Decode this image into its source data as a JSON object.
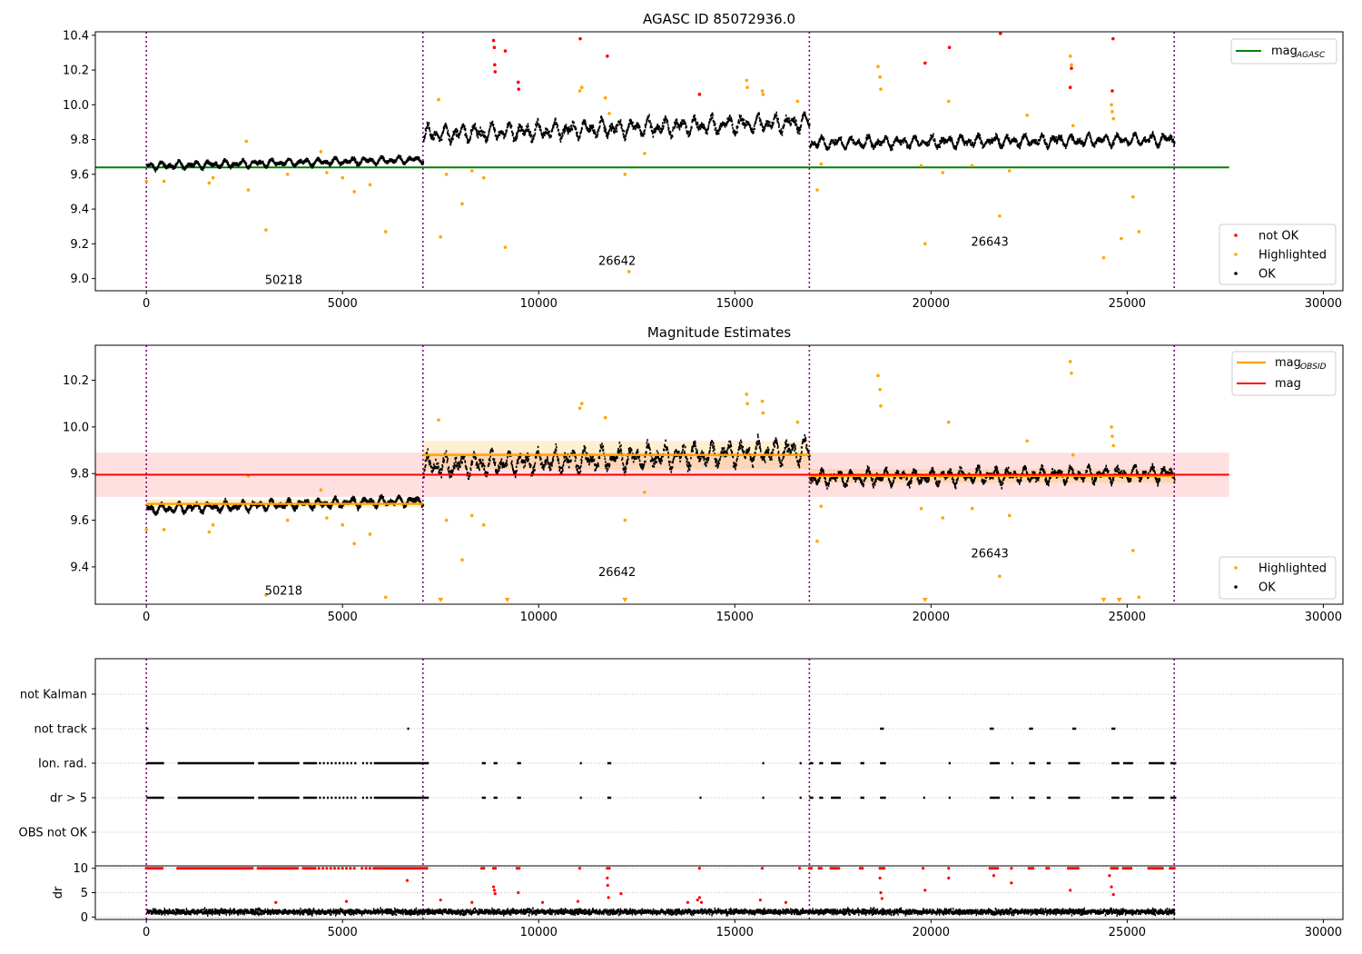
{
  "chart_data": [
    {
      "type": "scatter",
      "title": "AGASC ID 85072936.0",
      "xlim": [
        -1300,
        30500
      ],
      "ylim": [
        8.93,
        10.42
      ],
      "x_ticks": [
        0,
        5000,
        10000,
        15000,
        20000,
        25000,
        30000
      ],
      "y_ticks": [
        9.0,
        9.2,
        9.4,
        9.6,
        9.8,
        10.0,
        10.2,
        10.4
      ],
      "x_tick_labels": [
        "0",
        "5000",
        "10000",
        "15000",
        "20000",
        "25000",
        "30000"
      ],
      "y_tick_labels": [
        "9.0",
        "9.2",
        "9.4",
        "9.6",
        "9.8",
        "10.0",
        "10.2",
        "10.4"
      ],
      "observation_boundaries": [
        0,
        7050,
        16900,
        26200
      ],
      "observation_labels": [
        {
          "text": "50218",
          "x": 3500,
          "y": 8.97
        },
        {
          "text": "26642",
          "x": 12000,
          "y": 9.08
        },
        {
          "text": "26643",
          "x": 21500,
          "y": 9.19
        }
      ],
      "reference_lines": [
        {
          "name": "mag",
          "subscript": "AGASC",
          "value": 9.64,
          "x_range": [
            -1300,
            27600
          ],
          "color": "#008000"
        }
      ],
      "segments": [
        {
          "x0": 0,
          "x1": 7050,
          "mean_start": 9.648,
          "mean_end": 9.685,
          "spread": 0.025
        },
        {
          "x0": 7050,
          "x1": 16900,
          "mean_start": 9.83,
          "mean_end": 9.9,
          "spread": 0.06
        },
        {
          "x0": 16900,
          "x1": 26200,
          "mean_start": 9.78,
          "mean_end": 9.8,
          "spread": 0.04
        }
      ],
      "series": [
        {
          "name": "not OK",
          "color": "#ff0000",
          "x": [
            8850,
            8870,
            8880,
            8890,
            9150,
            9480,
            9490,
            11060,
            11750,
            14100,
            19850,
            20470,
            21770,
            23550,
            23580,
            24620,
            24640
          ],
          "y": [
            10.37,
            10.33,
            10.23,
            10.19,
            10.31,
            10.13,
            10.09,
            10.38,
            10.28,
            10.06,
            10.24,
            10.33,
            10.41,
            10.1,
            10.21,
            10.08,
            10.38
          ]
        },
        {
          "name": "Highlighted",
          "color": "#ffa500",
          "x": [
            0,
            450,
            1600,
            1700,
            2550,
            2600,
            3050,
            3600,
            4450,
            4600,
            5000,
            5300,
            5700,
            6100,
            7450,
            7500,
            7650,
            8050,
            8300,
            8600,
            9150,
            11050,
            11100,
            11700,
            11800,
            12200,
            12300,
            12700,
            15300,
            15320,
            15700,
            15720,
            16600,
            17100,
            17200,
            18650,
            18700,
            18720,
            19750,
            19850,
            20300,
            20450,
            21050,
            21750,
            22000,
            22450,
            23550,
            23580,
            23620,
            24400,
            24600,
            24620,
            24650,
            24850,
            25150,
            25300
          ],
          "y": [
            9.56,
            9.56,
            9.55,
            9.58,
            9.79,
            9.51,
            9.28,
            9.6,
            9.73,
            9.61,
            9.58,
            9.5,
            9.54,
            9.27,
            10.03,
            9.24,
            9.6,
            9.43,
            9.62,
            9.58,
            9.18,
            10.08,
            10.1,
            10.04,
            9.95,
            9.6,
            9.04,
            9.72,
            10.14,
            10.1,
            10.08,
            10.06,
            10.02,
            9.51,
            9.66,
            10.22,
            10.16,
            10.09,
            9.65,
            9.2,
            9.61,
            10.02,
            9.65,
            9.36,
            9.62,
            9.94,
            10.28,
            10.23,
            9.88,
            9.12,
            10.0,
            9.96,
            9.92,
            9.23,
            9.47,
            9.27
          ]
        },
        {
          "name": "OK",
          "color": "#000000",
          "x": [],
          "y": []
        }
      ],
      "legend": [
        {
          "placement": "top-right",
          "entries": [
            "mag AGASC"
          ]
        },
        {
          "placement": "bottom-right",
          "entries": [
            "not OK",
            "Highlighted",
            "OK"
          ]
        }
      ]
    },
    {
      "type": "scatter",
      "title": "Magnitude Estimates",
      "xlim": [
        -1300,
        30500
      ],
      "ylim": [
        9.24,
        10.35
      ],
      "x_ticks": [
        0,
        5000,
        10000,
        15000,
        20000,
        25000,
        30000
      ],
      "y_ticks": [
        9.4,
        9.6,
        9.8,
        10.0,
        10.2
      ],
      "x_tick_labels": [
        "0",
        "5000",
        "10000",
        "15000",
        "20000",
        "25000",
        "30000"
      ],
      "y_tick_labels": [
        "9.4",
        "9.6",
        "9.8",
        "10.0",
        "10.2"
      ],
      "observation_boundaries": [
        0,
        7050,
        16900,
        26200
      ],
      "observation_labels": [
        {
          "text": "50218",
          "x": 3500,
          "y": 9.28
        },
        {
          "text": "26642",
          "x": 12000,
          "y": 9.36
        },
        {
          "text": "26643",
          "x": 21500,
          "y": 9.44
        }
      ],
      "reference_lines": [
        {
          "name": "mag",
          "subscript": "OBSID",
          "color": "#ffa500",
          "steps": [
            {
              "x0": 0,
              "x1": 7050,
              "value": 9.67,
              "band": [
                9.655,
                9.69
              ]
            },
            {
              "x0": 7050,
              "x1": 16900,
              "value": 9.88,
              "band": [
                9.82,
                9.94
              ]
            },
            {
              "x0": 16900,
              "x1": 26200,
              "value": 9.79,
              "band": [
                9.76,
                9.82
              ]
            }
          ]
        },
        {
          "name": "mag",
          "value": 9.795,
          "band": [
            9.7,
            9.89
          ],
          "x_range": [
            -1300,
            27600
          ],
          "color": "#ff0000"
        }
      ],
      "segments": [
        {
          "x0": 0,
          "x1": 7050,
          "mean_start": 9.648,
          "mean_end": 9.685,
          "spread": 0.025
        },
        {
          "x0": 7050,
          "x1": 16900,
          "mean_start": 9.83,
          "mean_end": 9.9,
          "spread": 0.06
        },
        {
          "x0": 16900,
          "x1": 26200,
          "mean_start": 9.78,
          "mean_end": 9.8,
          "spread": 0.04
        }
      ],
      "series": [
        {
          "name": "Highlighted",
          "color": "#ffa500",
          "x": [
            0,
            450,
            1600,
            1700,
            2600,
            3050,
            3600,
            4450,
            4600,
            5000,
            5300,
            5700,
            6100,
            7450,
            7650,
            8050,
            8300,
            8600,
            11050,
            11100,
            11700,
            12200,
            12700,
            15300,
            15320,
            15700,
            15720,
            16600,
            17100,
            17200,
            18650,
            18700,
            18720,
            19750,
            20300,
            20450,
            21050,
            21750,
            22000,
            22450,
            23550,
            23580,
            23620,
            24600,
            24620,
            24650,
            25150,
            25300
          ],
          "y": [
            9.56,
            9.56,
            9.55,
            9.58,
            9.79,
            9.28,
            9.6,
            9.73,
            9.61,
            9.58,
            9.5,
            9.54,
            9.27,
            10.03,
            9.6,
            9.43,
            9.62,
            9.58,
            10.08,
            10.1,
            10.04,
            9.6,
            9.72,
            10.14,
            10.1,
            10.11,
            10.06,
            10.02,
            9.51,
            9.66,
            10.22,
            10.16,
            10.09,
            9.65,
            9.61,
            10.02,
            9.65,
            9.36,
            9.62,
            9.94,
            10.28,
            10.23,
            9.88,
            10.0,
            9.96,
            9.92,
            9.47,
            9.27
          ]
        },
        {
          "name": "OK",
          "color": "#000000",
          "x": [],
          "y": []
        }
      ],
      "offscale_markers": [
        7500,
        9200,
        12200,
        19850,
        24400,
        24800
      ],
      "legend": [
        {
          "placement": "top-right",
          "entries": [
            "mag OBSID",
            "mag"
          ]
        },
        {
          "placement": "bottom-right",
          "entries": [
            "Highlighted",
            "OK"
          ]
        }
      ]
    },
    {
      "type": "scatter",
      "title": "",
      "xlim": [
        -1300,
        30500
      ],
      "categories": [
        "OBS not OK",
        "dr > 5",
        "Ion. rad.",
        "not track",
        "not Kalman"
      ],
      "observation_boundaries": [
        0,
        7050,
        16900,
        26200
      ],
      "flag_points": {
        "not track": [
          0,
          6650,
          18700,
          18750,
          21500,
          21550,
          22500,
          22550,
          23600,
          23650,
          24600,
          24650
        ],
        "Ion. rad.": [
          0,
          50,
          100,
          150,
          200,
          250,
          300,
          350,
          400,
          800,
          850,
          900,
          950,
          1000,
          1050,
          1100,
          1150,
          1200,
          1250,
          1300,
          1350,
          1400,
          1450,
          1500,
          1550,
          1600,
          1650,
          1700,
          1750,
          1800,
          1850,
          1900,
          1950,
          2000,
          2050,
          2100,
          2150,
          2200,
          2250,
          2300,
          2350,
          2400,
          2450,
          2500,
          2550,
          2600,
          2650,
          2700,
          2850,
          2900,
          2950,
          3000,
          3050,
          3100,
          3150,
          3200,
          3250,
          3300,
          3350,
          3400,
          3450,
          3500,
          3550,
          3600,
          3650,
          3700,
          3750,
          3800,
          3850,
          4000,
          4050,
          4100,
          4150,
          4200,
          4250,
          4300,
          4400,
          4500,
          4600,
          4700,
          4800,
          4900,
          5000,
          5100,
          5200,
          5300,
          5500,
          5600,
          5700,
          5800,
          5850,
          5900,
          5950,
          6000,
          6050,
          6100,
          6150,
          6200,
          6250,
          6300,
          6350,
          6400,
          6450,
          6500,
          6550,
          6600,
          6650,
          6700,
          6750,
          6800,
          6850,
          6900,
          6950,
          7000,
          7050,
          7100,
          7150,
          8550,
          8600,
          8850,
          8900,
          9450,
          9500,
          11050,
          11750,
          11800,
          15700,
          16650,
          16900,
          16950,
          17150,
          17200,
          17450,
          17500,
          17550,
          17600,
          17650,
          18200,
          18250,
          18700,
          18750,
          18800,
          20450,
          21500,
          21550,
          21600,
          21650,
          21700,
          22050,
          22500,
          22550,
          22600,
          22950,
          23000,
          23500,
          23550,
          23600,
          23650,
          23700,
          23750,
          24600,
          24650,
          24700,
          24750,
          24900,
          24950,
          25000,
          25050,
          25100,
          25550,
          25600,
          25650,
          25700,
          25750,
          25800,
          25850,
          25900,
          26100,
          26150,
          26200
        ],
        "dr > 5": [
          0,
          50,
          100,
          150,
          200,
          250,
          300,
          350,
          400,
          800,
          850,
          900,
          950,
          1000,
          1050,
          1100,
          1150,
          1200,
          1250,
          1300,
          1350,
          1400,
          1450,
          1500,
          1550,
          1600,
          1650,
          1700,
          1750,
          1800,
          1850,
          1900,
          1950,
          2000,
          2050,
          2100,
          2150,
          2200,
          2250,
          2300,
          2350,
          2400,
          2450,
          2500,
          2550,
          2600,
          2650,
          2700,
          2850,
          2900,
          2950,
          3000,
          3050,
          3100,
          3150,
          3200,
          3250,
          3300,
          3350,
          3400,
          3450,
          3500,
          3550,
          3600,
          3650,
          3700,
          3750,
          3800,
          3850,
          4000,
          4050,
          4100,
          4150,
          4200,
          4250,
          4300,
          4400,
          4500,
          4600,
          4700,
          4800,
          4900,
          5000,
          5100,
          5200,
          5300,
          5500,
          5600,
          5700,
          5800,
          5850,
          5900,
          5950,
          6000,
          6050,
          6100,
          6150,
          6200,
          6250,
          6300,
          6350,
          6400,
          6450,
          6500,
          6550,
          6600,
          6650,
          6700,
          6750,
          6800,
          6850,
          6900,
          6950,
          7000,
          7050,
          7100,
          7150,
          8550,
          8600,
          8850,
          8900,
          9450,
          9500,
          11050,
          11750,
          11800,
          14100,
          15700,
          16650,
          16900,
          16950,
          17150,
          17200,
          17450,
          17500,
          17550,
          17600,
          17650,
          18200,
          18250,
          18700,
          18750,
          18800,
          19800,
          20450,
          21500,
          21550,
          21600,
          21650,
          21700,
          22050,
          22500,
          22550,
          22600,
          22950,
          23000,
          23500,
          23550,
          23600,
          23650,
          23700,
          23750,
          24600,
          24650,
          24700,
          24750,
          24900,
          24950,
          25000,
          25050,
          25100,
          25550,
          25600,
          25650,
          25700,
          25750,
          25800,
          25850,
          25900,
          26100,
          26150,
          26200
        ]
      },
      "dr_panel": {
        "ylabel": "dr",
        "ylim": [
          -0.5,
          10.5
        ],
        "y_ticks": [
          0,
          5,
          10
        ],
        "y_tick_labels": [
          "0",
          "5",
          "10"
        ],
        "baseline_mean": 1.0,
        "clipped_value": 10,
        "red_points": {
          "x": [
            8850,
            8870,
            8890,
            9480,
            11750,
            11760,
            11780,
            12100,
            14050,
            14100,
            14150,
            18700,
            18720,
            18750,
            19850,
            20450,
            21600,
            22050,
            23550,
            24550,
            24600,
            24650,
            3300,
            5100,
            6650,
            7500,
            8300,
            10100,
            11000,
            13800,
            15650,
            16300
          ],
          "y": [
            6.2,
            5.5,
            4.8,
            5.0,
            8.0,
            6.5,
            4.0,
            4.8,
            3.5,
            4.0,
            3.0,
            8.0,
            5.0,
            3.8,
            5.5,
            8.0,
            8.5,
            7.0,
            5.5,
            8.5,
            6.2,
            4.6,
            3.0,
            3.2,
            7.5,
            3.5,
            3.0,
            3.0,
            3.2,
            3.0,
            3.5,
            3.0
          ]
        }
      }
    }
  ]
}
